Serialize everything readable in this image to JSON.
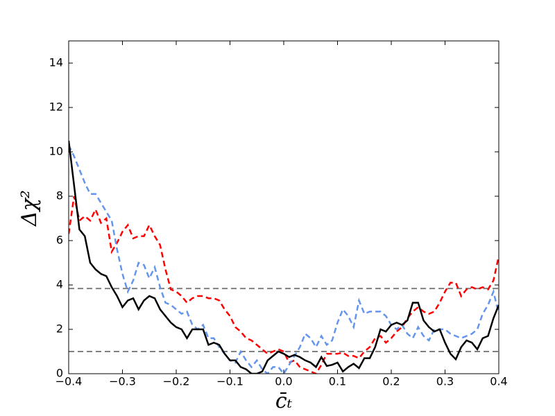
{
  "chart_data": {
    "type": "line",
    "xlabel": "c̄ₜ",
    "ylabel": "Δχ²",
    "x": [
      -0.4,
      -0.39,
      -0.38,
      -0.37,
      -0.36,
      -0.35,
      -0.34,
      -0.33,
      -0.32,
      -0.31,
      -0.3,
      -0.29,
      -0.28,
      -0.27,
      -0.26,
      -0.25,
      -0.24,
      -0.23,
      -0.22,
      -0.21,
      -0.2,
      -0.19,
      -0.18,
      -0.17,
      -0.16,
      -0.15,
      -0.14,
      -0.13,
      -0.12,
      -0.11,
      -0.1,
      -0.09,
      -0.08,
      -0.07,
      -0.06,
      -0.05,
      -0.04,
      -0.03,
      -0.02,
      -0.01,
      0,
      0.01,
      0.02,
      0.03,
      0.04,
      0.05,
      0.06,
      0.07,
      0.08,
      0.09,
      0.1,
      0.11,
      0.12,
      0.13,
      0.14,
      0.15,
      0.16,
      0.17,
      0.18,
      0.19,
      0.2,
      0.21,
      0.22,
      0.23,
      0.24,
      0.25,
      0.26,
      0.27,
      0.28,
      0.29,
      0.3,
      0.31,
      0.32,
      0.33,
      0.34,
      0.35,
      0.36,
      0.37,
      0.38,
      0.39,
      0.4
    ],
    "series": [
      {
        "color": "#ff0000",
        "dashed": true,
        "values": [
          6.3,
          8.0,
          6.9,
          7.1,
          6.9,
          7.4,
          6.8,
          7.0,
          5.5,
          5.9,
          6.4,
          6.7,
          6.1,
          6.2,
          6.2,
          6.7,
          6.2,
          5.8,
          4.7,
          3.8,
          3.7,
          3.5,
          3.2,
          3.4,
          3.5,
          3.5,
          3.4,
          3.4,
          3.3,
          2.9,
          2.6,
          2.1,
          1.9,
          1.6,
          1.5,
          1.3,
          1.1,
          0.9,
          1.0,
          1.1,
          1.0,
          0.5,
          0.6,
          0.3,
          0.2,
          0.1,
          0.0,
          0.4,
          0.9,
          0.9,
          0.9,
          0.95,
          0.8,
          0.8,
          0.7,
          1.0,
          1.2,
          1.6,
          1.7,
          1.4,
          1.6,
          1.9,
          2.1,
          2.5,
          2.8,
          3.0,
          2.8,
          2.7,
          2.8,
          3.2,
          3.7,
          4.1,
          4.1,
          3.5,
          3.8,
          3.9,
          3.8,
          3.9,
          3.8,
          4.2,
          5.3
        ]
      },
      {
        "color": "#6495ed",
        "dashed": true,
        "values": [
          10.3,
          9.8,
          9.2,
          8.6,
          8.1,
          8.1,
          7.7,
          7.3,
          6.9,
          5.6,
          4.5,
          3.7,
          4.2,
          5.0,
          4.9,
          4.3,
          4.8,
          3.9,
          3.2,
          3.1,
          2.9,
          2.7,
          2.8,
          2.2,
          2.0,
          2.2,
          1.6,
          1.6,
          1.2,
          0.9,
          0.6,
          0.5,
          1.0,
          0.6,
          0.3,
          0.6,
          0.2,
          0.0,
          0.3,
          0.3,
          0.0,
          0.4,
          0.8,
          1.2,
          1.8,
          1.6,
          1.2,
          1.7,
          1.3,
          1.5,
          2.3,
          2.9,
          2.6,
          2.1,
          3.3,
          2.7,
          2.8,
          2.8,
          2.8,
          2.6,
          2.2,
          2.0,
          2.2,
          1.8,
          1.6,
          2.1,
          1.7,
          1.5,
          2.0,
          2.0,
          2.0,
          1.8,
          1.7,
          1.6,
          1.7,
          1.8,
          2.0,
          2.7,
          3.1,
          3.7,
          2.7
        ]
      },
      {
        "color": "#000000",
        "dashed": false,
        "values": [
          10.5,
          8.5,
          6.5,
          6.2,
          5.0,
          4.7,
          4.5,
          4.4,
          3.9,
          3.5,
          3.0,
          3.3,
          3.4,
          2.9,
          3.3,
          3.5,
          3.4,
          2.9,
          2.6,
          2.3,
          2.1,
          2.0,
          1.6,
          2.0,
          2.0,
          2.0,
          1.3,
          1.4,
          1.3,
          0.9,
          0.6,
          0.6,
          0.3,
          0.2,
          0.0,
          0.0,
          0.1,
          0.6,
          0.8,
          1.0,
          0.9,
          0.75,
          0.85,
          0.75,
          0.6,
          0.5,
          0.3,
          0.75,
          0.35,
          0.4,
          0.5,
          0.1,
          0.3,
          0.45,
          0.25,
          0.7,
          0.7,
          1.2,
          2.0,
          1.9,
          2.2,
          2.3,
          2.2,
          2.4,
          3.2,
          3.2,
          2.4,
          2.1,
          1.9,
          2.0,
          1.4,
          0.9,
          0.65,
          1.2,
          1.5,
          1.4,
          1.1,
          1.6,
          1.7,
          2.5,
          3.1
        ]
      }
    ],
    "hlines": [
      {
        "value": 3.84,
        "color": "#808080"
      },
      {
        "value": 1,
        "color": "#808080"
      }
    ],
    "xlim": [
      -0.4,
      0.4
    ],
    "xticks": [
      {
        "value": -0.4,
        "label": "−0.4"
      },
      {
        "value": -0.3,
        "label": "−0.3"
      },
      {
        "value": -0.2,
        "label": "−0.2"
      },
      {
        "value": -0.1,
        "label": "−0.1"
      },
      {
        "value": 0,
        "label": "0.0"
      },
      0.1,
      0.2,
      0.3,
      0.4
    ],
    "ylim": [
      0,
      15
    ],
    "yticks": [
      0,
      2,
      4,
      6,
      8,
      10,
      12,
      14
    ]
  }
}
